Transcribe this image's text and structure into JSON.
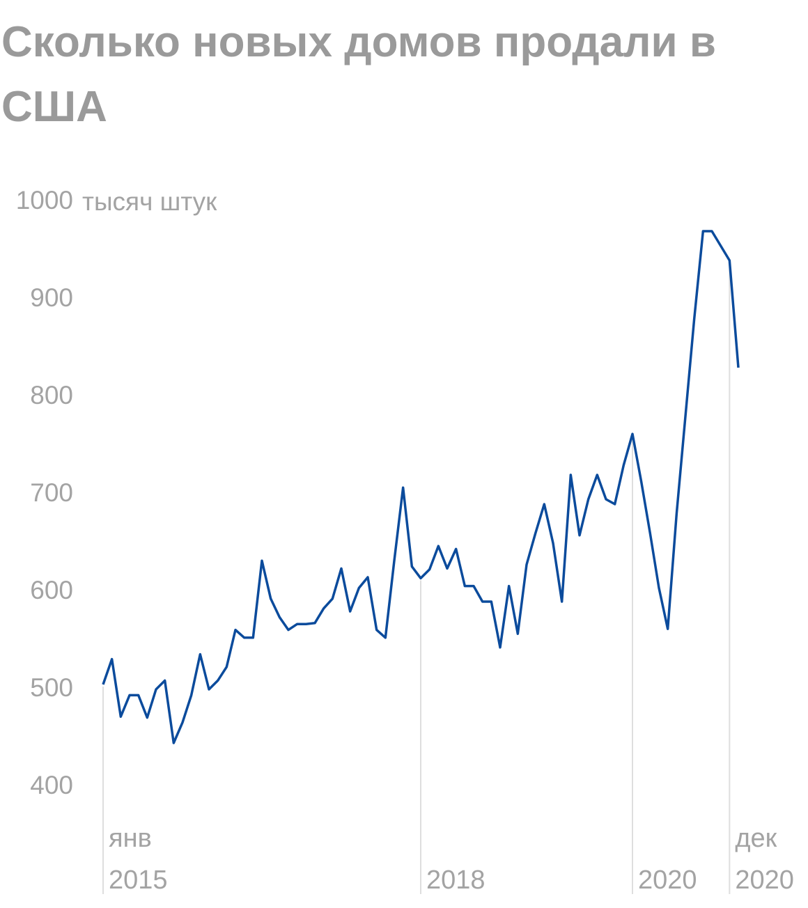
{
  "chart_data": {
    "type": "line",
    "title": "Сколько новых домов продали в США",
    "y_unit": "тысяч штук",
    "categories": [
      "янв 2015",
      null,
      null,
      null,
      null,
      null,
      null,
      null,
      null,
      null,
      null,
      null,
      null,
      null,
      null,
      null,
      null,
      null,
      null,
      null,
      null,
      null,
      null,
      null,
      null,
      null,
      null,
      null,
      null,
      null,
      null,
      null,
      null,
      null,
      null,
      null,
      "2018",
      null,
      null,
      null,
      null,
      null,
      null,
      null,
      null,
      null,
      null,
      null,
      null,
      null,
      null,
      null,
      null,
      null,
      null,
      null,
      null,
      null,
      null,
      null,
      "2020",
      null,
      null,
      null,
      null,
      null,
      null,
      null,
      null,
      null,
      null,
      "дек 2020",
      null
    ],
    "values": [
      505,
      531,
      472,
      494,
      494,
      471,
      500,
      509,
      445,
      466,
      494,
      536,
      500,
      509,
      523,
      561,
      553,
      553,
      632,
      593,
      574,
      561,
      567,
      567,
      568,
      583,
      593,
      624,
      580,
      604,
      615,
      561,
      553,
      632,
      707,
      626,
      614,
      623,
      647,
      624,
      644,
      606,
      606,
      590,
      590,
      543,
      606,
      557,
      628,
      660,
      690,
      650,
      590,
      720,
      658,
      695,
      720,
      695,
      690,
      730,
      762,
      713,
      660,
      604,
      562,
      680,
      780,
      880,
      970,
      970,
      955,
      940,
      830
    ],
    "color": "#0b4b9c",
    "ylim": [
      400,
      1000
    ],
    "yticks": [
      400,
      500,
      600,
      700,
      800,
      900,
      1000
    ]
  }
}
